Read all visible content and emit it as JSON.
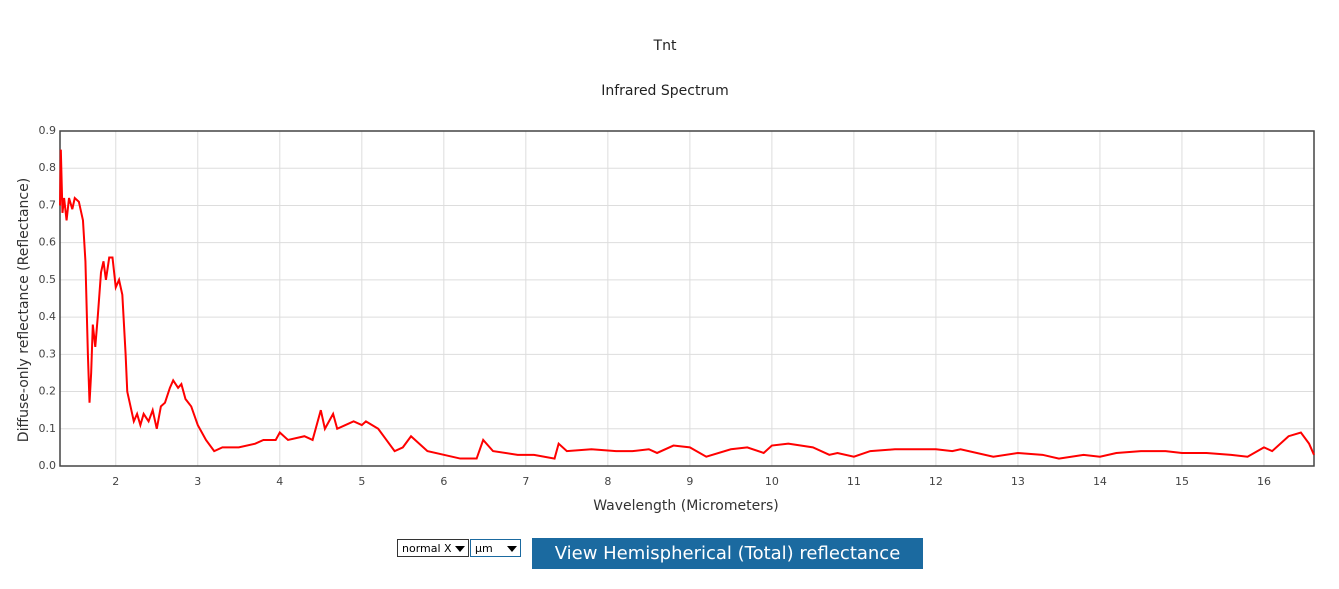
{
  "chart_data": {
    "type": "line",
    "title": "Tnt",
    "subtitle": "Infrared Spectrum",
    "x_label": "Wavelength (Micrometers)",
    "y_label": "Diffuse-only reflectance (Reflectance)",
    "xlim": [
      1.32,
      16.61
    ],
    "ylim": [
      0,
      0.9
    ],
    "xticks": [
      2,
      3,
      4,
      5,
      6,
      7,
      8,
      9,
      10,
      11,
      12,
      13,
      14,
      15,
      16
    ],
    "yticks": [
      {
        "value": 0,
        "label": "0.0"
      },
      0.1,
      0.2,
      0.3,
      0.4,
      0.5,
      0.6,
      0.7,
      0.8,
      0.9
    ],
    "grid": true,
    "x": [
      1.32,
      1.33,
      1.35,
      1.37,
      1.4,
      1.43,
      1.47,
      1.5,
      1.55,
      1.6,
      1.63,
      1.66,
      1.68,
      1.7,
      1.72,
      1.75,
      1.78,
      1.82,
      1.85,
      1.88,
      1.92,
      1.96,
      2.0,
      2.04,
      2.08,
      2.12,
      2.14,
      2.18,
      2.22,
      2.26,
      2.3,
      2.34,
      2.4,
      2.45,
      2.5,
      2.55,
      2.6,
      2.66,
      2.7,
      2.76,
      2.8,
      2.85,
      2.92,
      3.0,
      3.1,
      3.2,
      3.3,
      3.5,
      3.7,
      3.8,
      3.95,
      4.0,
      4.1,
      4.3,
      4.4,
      4.5,
      4.55,
      4.65,
      4.7,
      4.8,
      4.9,
      5.0,
      5.05,
      5.2,
      5.3,
      5.4,
      5.5,
      5.6,
      5.8,
      6.0,
      6.2,
      6.4,
      6.48,
      6.6,
      6.9,
      7.1,
      7.35,
      7.4,
      7.5,
      7.8,
      8.1,
      8.3,
      8.5,
      8.6,
      8.8,
      9.0,
      9.2,
      9.5,
      9.7,
      9.9,
      10.0,
      10.2,
      10.5,
      10.7,
      10.8,
      11.0,
      11.2,
      11.5,
      12.0,
      12.2,
      12.3,
      12.7,
      13.0,
      13.3,
      13.5,
      13.8,
      14.0,
      14.2,
      14.5,
      14.8,
      15.0,
      15.3,
      15.6,
      15.8,
      16.0,
      16.1,
      16.3,
      16.45,
      16.55,
      16.61
    ],
    "series": [
      {
        "name": "Tnt",
        "color": "#ff0000",
        "values": [
          0.7,
          0.85,
          0.68,
          0.72,
          0.66,
          0.72,
          0.69,
          0.72,
          0.71,
          0.66,
          0.55,
          0.3,
          0.17,
          0.25,
          0.38,
          0.32,
          0.4,
          0.52,
          0.55,
          0.5,
          0.56,
          0.56,
          0.48,
          0.5,
          0.46,
          0.3,
          0.2,
          0.16,
          0.12,
          0.14,
          0.11,
          0.14,
          0.12,
          0.15,
          0.1,
          0.16,
          0.17,
          0.21,
          0.23,
          0.21,
          0.22,
          0.18,
          0.16,
          0.11,
          0.07,
          0.04,
          0.05,
          0.05,
          0.06,
          0.07,
          0.07,
          0.09,
          0.07,
          0.08,
          0.07,
          0.15,
          0.1,
          0.14,
          0.1,
          0.11,
          0.12,
          0.11,
          0.12,
          0.1,
          0.07,
          0.04,
          0.05,
          0.08,
          0.04,
          0.03,
          0.02,
          0.02,
          0.07,
          0.04,
          0.03,
          0.03,
          0.02,
          0.06,
          0.04,
          0.045,
          0.04,
          0.04,
          0.045,
          0.035,
          0.055,
          0.05,
          0.025,
          0.045,
          0.05,
          0.035,
          0.055,
          0.06,
          0.05,
          0.03,
          0.035,
          0.025,
          0.04,
          0.045,
          0.045,
          0.04,
          0.045,
          0.025,
          0.035,
          0.03,
          0.02,
          0.03,
          0.025,
          0.035,
          0.04,
          0.04,
          0.035,
          0.035,
          0.03,
          0.025,
          0.05,
          0.04,
          0.08,
          0.09,
          0.06,
          0.03
        ]
      }
    ]
  },
  "controls": {
    "x_mode": "normal X",
    "unit": "µm",
    "button": "View Hemispherical (Total) reflectance"
  }
}
